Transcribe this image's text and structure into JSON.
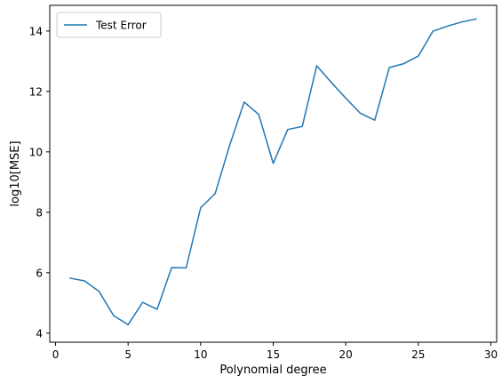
{
  "chart_data": {
    "type": "line",
    "title": "",
    "xlabel": "Polynomial degree",
    "ylabel": "log10[MSE]",
    "xlim": [
      -0.4,
      30.4
    ],
    "ylim": [
      3.7,
      14.85
    ],
    "xticks": [
      0,
      5,
      10,
      15,
      20,
      25,
      30
    ],
    "yticks": [
      4,
      6,
      8,
      10,
      12,
      14
    ],
    "grid": false,
    "legend_position": "upper-left",
    "series": [
      {
        "name": "Test Error",
        "color": "#1f77b4",
        "x": [
          1,
          2,
          3,
          4,
          5,
          6,
          7,
          8,
          9,
          10,
          11,
          12,
          13,
          14,
          15,
          16,
          17,
          18,
          19,
          20,
          21,
          22,
          23,
          24,
          25,
          26,
          27,
          28,
          29
        ],
        "y": [
          5.82,
          5.73,
          5.38,
          4.58,
          4.28,
          5.02,
          4.79,
          6.17,
          6.16,
          8.15,
          8.62,
          10.22,
          11.65,
          11.24,
          9.62,
          10.74,
          10.84,
          12.85,
          12.3,
          11.78,
          11.28,
          11.05,
          12.79,
          12.92,
          13.17,
          13.99,
          14.16,
          14.3,
          14.4
        ]
      }
    ]
  }
}
